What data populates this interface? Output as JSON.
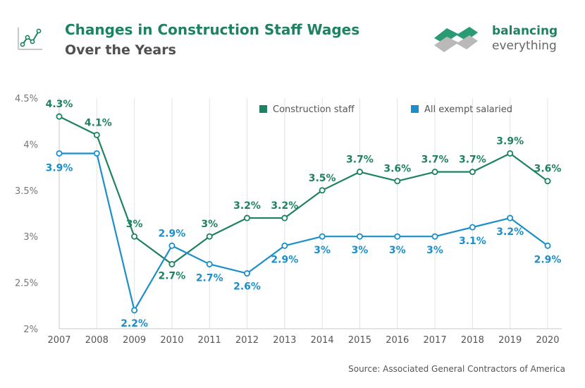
{
  "header": {
    "title": "Changes in Construction Staff Wages",
    "subtitle": "Over the Years"
  },
  "brand": {
    "name_line1": "balancing",
    "name_line2": "everything"
  },
  "source": "Source: Associated General Contractors of America",
  "colors": {
    "construction": "#1e8262",
    "exempt": "#1a8fc9",
    "title": "#1e8262",
    "grid": "#e3e3e3"
  },
  "chart_data": {
    "type": "line",
    "x": [
      "2007",
      "2008",
      "2009",
      "2010",
      "2011",
      "2012",
      "2013",
      "2014",
      "2015",
      "2016",
      "2017",
      "2018",
      "2019",
      "2020"
    ],
    "ylim": [
      2,
      4.5
    ],
    "yticks": [
      2,
      2.5,
      3,
      3.5,
      4,
      4.5
    ],
    "ytick_labels": [
      "2%",
      "2.5%",
      "3%",
      "3.5%",
      "4%",
      "4.5%"
    ],
    "grid": "vertical",
    "legend_position": "top-right",
    "series": [
      {
        "name": "Construction staff",
        "values": [
          4.3,
          4.1,
          3.0,
          2.7,
          3.0,
          3.2,
          3.2,
          3.5,
          3.7,
          3.6,
          3.7,
          3.7,
          3.9,
          3.6
        ],
        "labels": [
          "4.3%",
          "4.1%",
          "3%",
          "2.7%",
          "3%",
          "3.2%",
          "3.2%",
          "3.5%",
          "3.7%",
          "3.6%",
          "3.7%",
          "3.7%",
          "3.9%",
          "3.6%"
        ]
      },
      {
        "name": "All exempt salaried",
        "values": [
          3.9,
          3.9,
          2.2,
          2.9,
          2.7,
          2.6,
          2.9,
          3.0,
          3.0,
          3.0,
          3.0,
          3.1,
          3.2,
          2.9
        ],
        "labels": [
          "3.9%",
          "",
          "2.2%",
          "2.9%",
          "2.7%",
          "2.6%",
          "2.9%",
          "3%",
          "3%",
          "3%",
          "3%",
          "3.1%",
          "3.2%",
          "2.9%"
        ]
      }
    ]
  }
}
